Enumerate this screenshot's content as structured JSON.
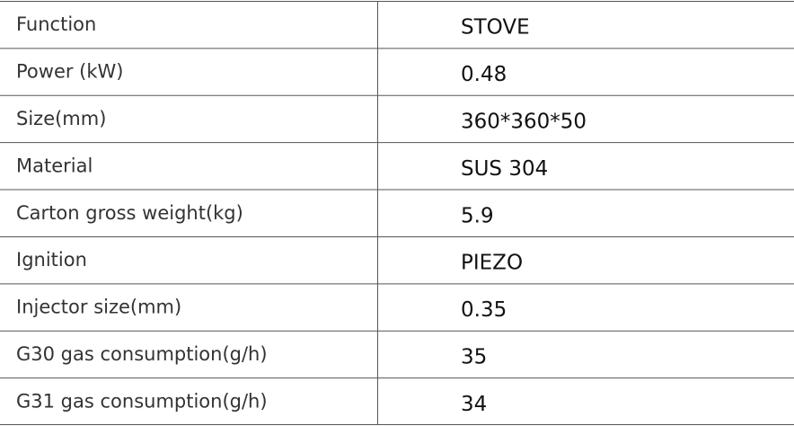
{
  "table": {
    "rows": [
      [
        "Function",
        "STOVE"
      ],
      [
        "Power (kW)",
        "0.48"
      ],
      [
        "Size(mm)",
        "360*360*50"
      ],
      [
        "Material",
        "SUS 304"
      ],
      [
        "Carton gross weight(kg)",
        "5.9"
      ],
      [
        "Ignition",
        "PIEZO"
      ],
      [
        "Injector size(mm)",
        "0.35"
      ],
      [
        "G30 gas consumption(g/h)",
        "35"
      ],
      [
        "G31 gas consumption(g/h)",
        "34"
      ]
    ]
  }
}
